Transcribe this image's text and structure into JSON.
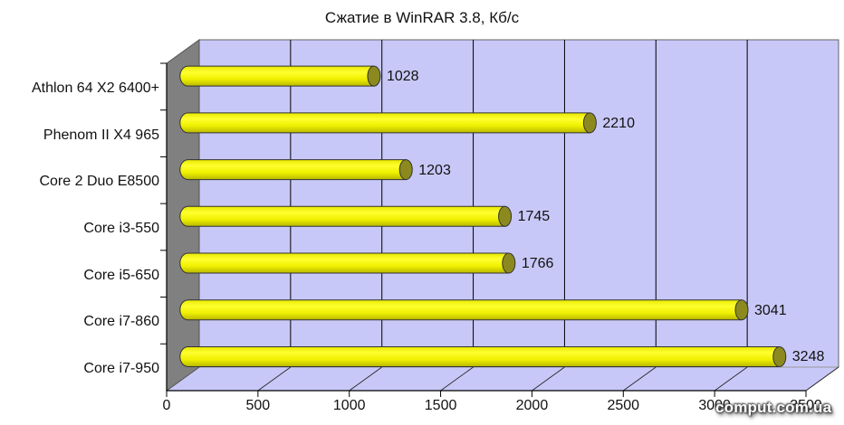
{
  "chart_data": {
    "type": "bar",
    "orientation": "horizontal",
    "style": "3d-cylinder",
    "title": "Сжатие в WinRAR 3.8, Кб/с",
    "xlabel": "",
    "ylabel": "",
    "categories": [
      "Athlon 64 X2 6400+",
      "Phenom II X4 965",
      "Core 2 Duo E8500",
      "Core i3-550",
      "Core i5-650",
      "Core i7-860",
      "Core i7-950"
    ],
    "values": [
      1028,
      2210,
      1203,
      1745,
      1766,
      3041,
      3248
    ],
    "value_labels": [
      "1028",
      "2210",
      "1203",
      "1745",
      "1766",
      "3041",
      "3248"
    ],
    "xlim": [
      0,
      3500
    ],
    "x_ticks": [
      "0",
      "500",
      "1000",
      "1500",
      "2000",
      "2500",
      "3000",
      "3500"
    ],
    "grid": true,
    "legend": null,
    "colors": {
      "bar": "#f2f200",
      "bar_end": "#8c8a1e",
      "plot_background": "#c8c8f8",
      "side_wall": "#808080",
      "gridline": "#000000"
    }
  },
  "watermark": "comput.com.ua"
}
